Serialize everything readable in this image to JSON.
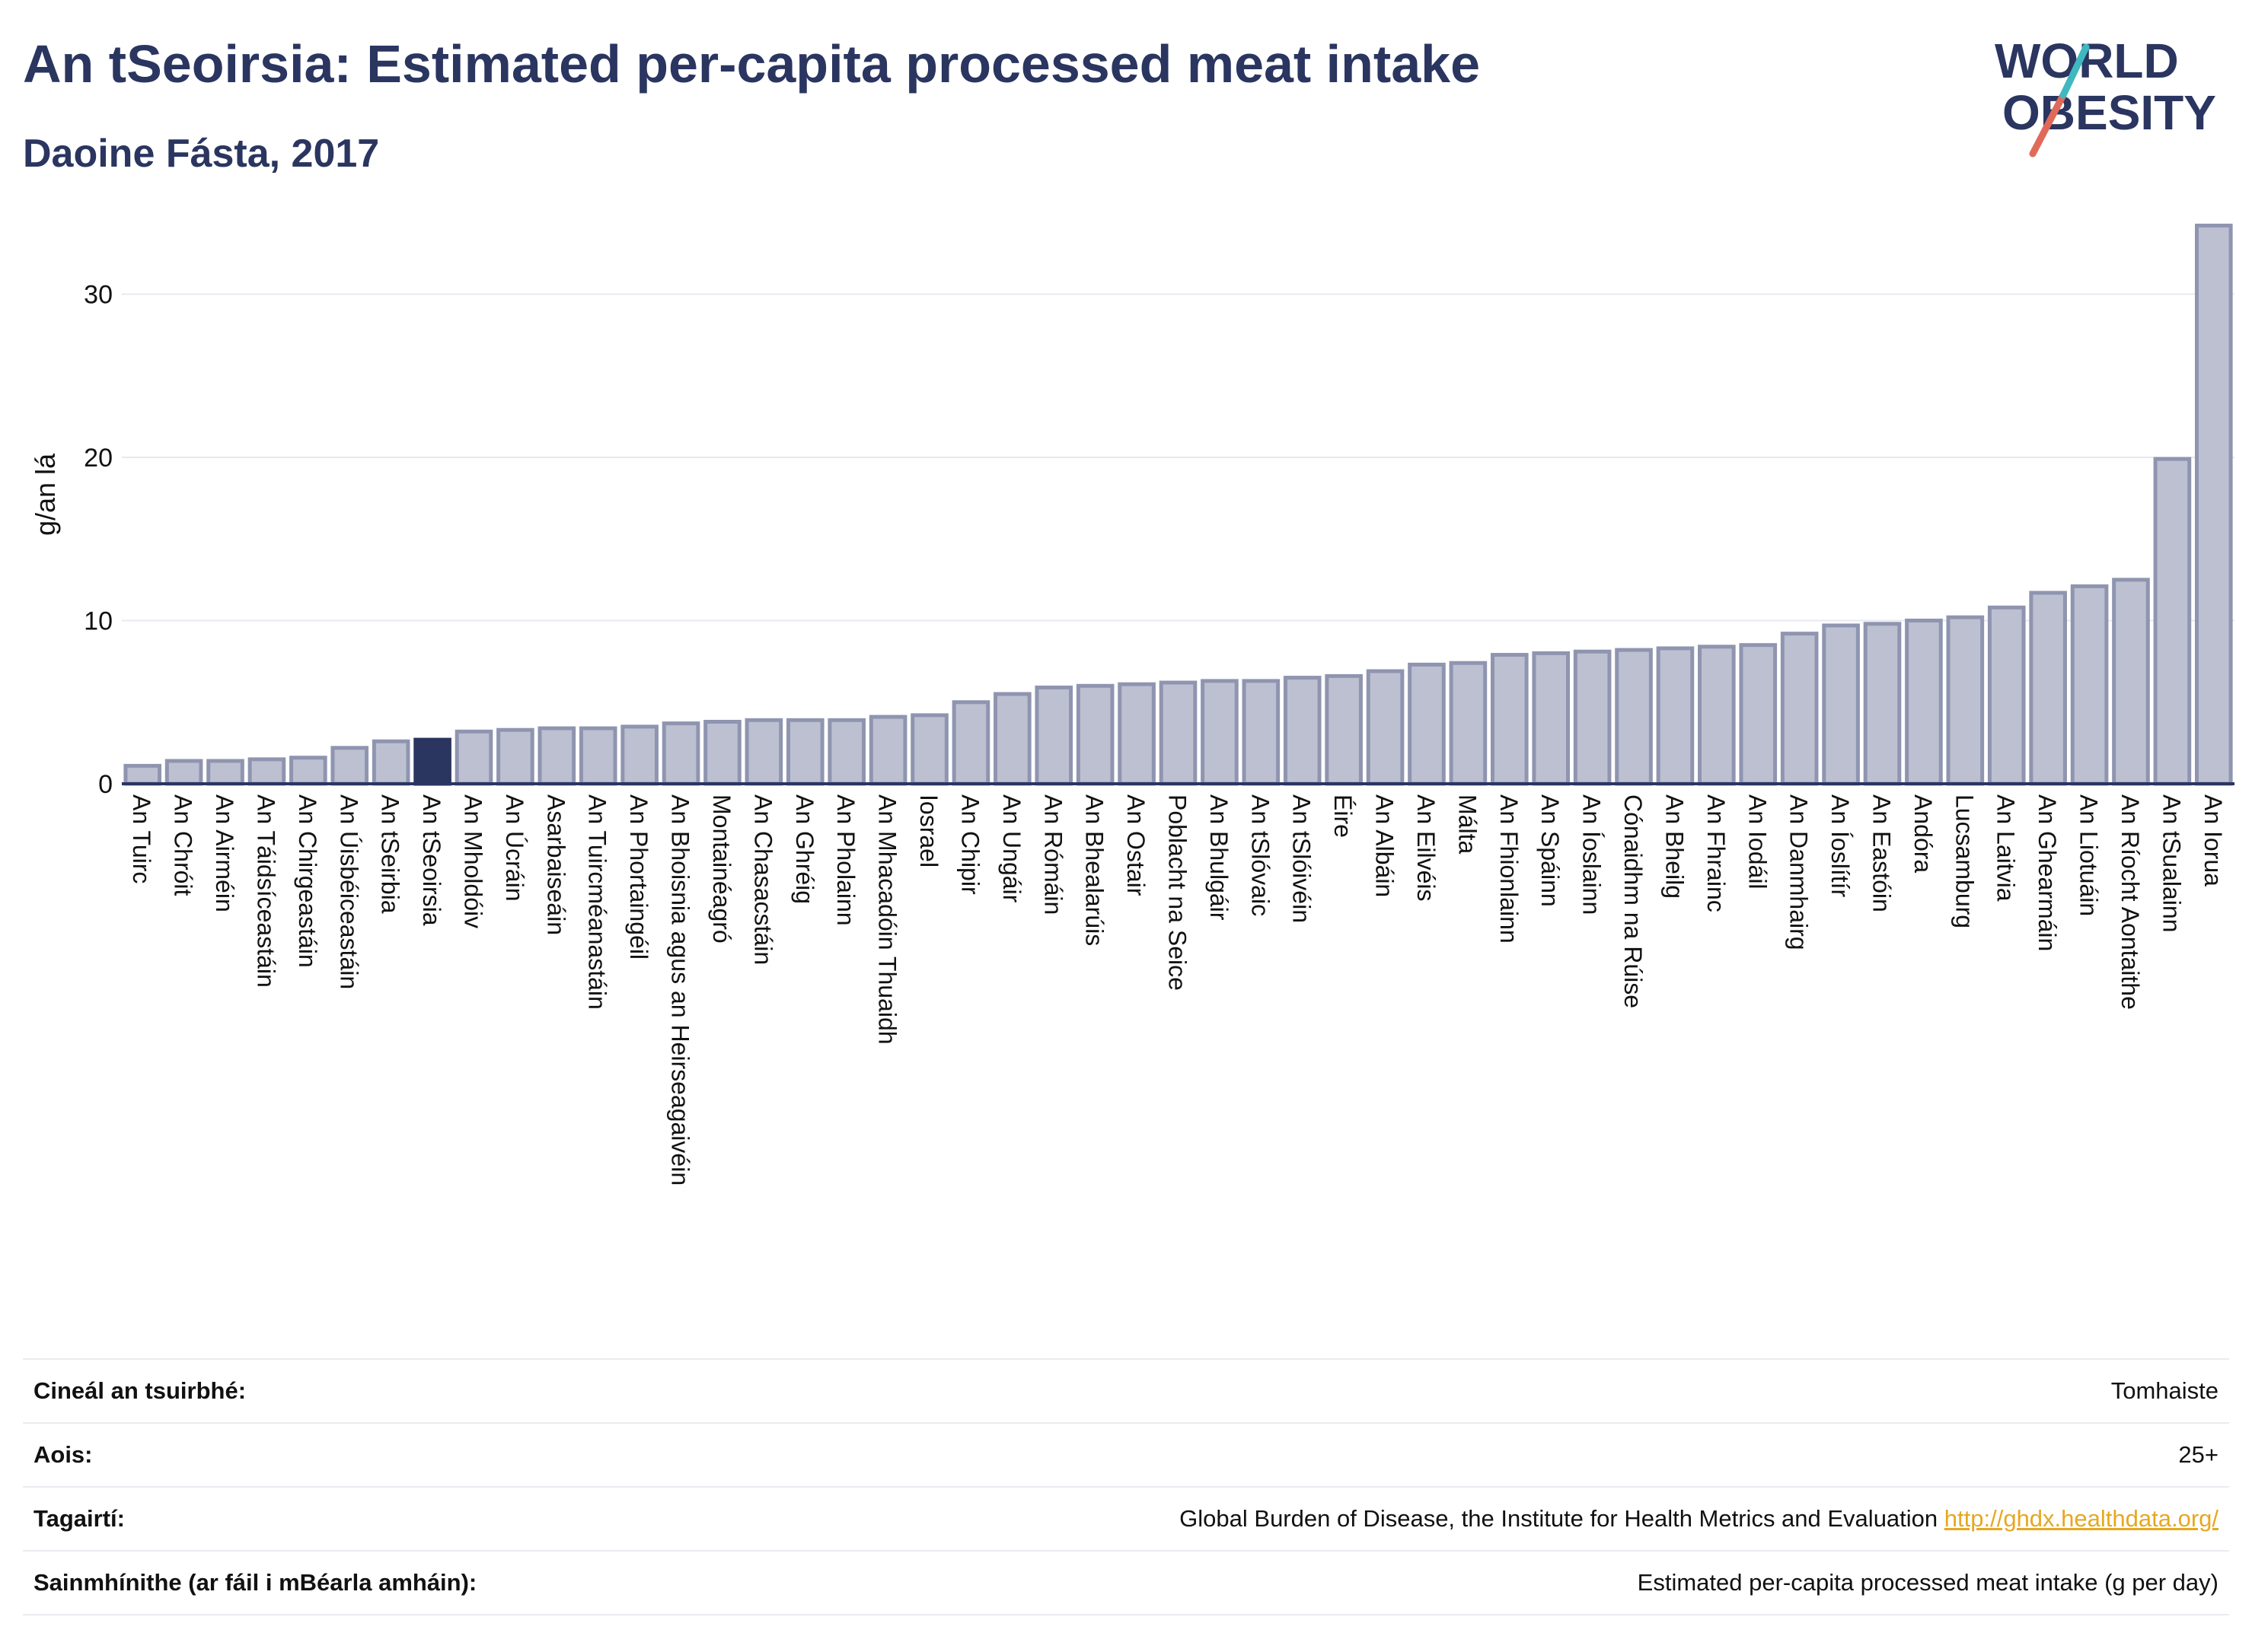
{
  "header": {
    "title": "An tSeoirsia: Estimated per-capita processed meat intake",
    "subtitle": "Daoine Fásta, 2017"
  },
  "logo": {
    "line1": "WORLD",
    "line2": "OBESITY"
  },
  "colors": {
    "bar_fill": "#bcc0d0",
    "bar_stroke": "#8f95b0",
    "highlight_fill": "#2a3560",
    "axis": "#2a3560",
    "grid": "#e6e9ef",
    "logo_text": "#2a3560",
    "logo_slash_red": "#e06a5a",
    "logo_slash_teal": "#3fb8c0",
    "link": "#e6a820"
  },
  "chart_data": {
    "type": "bar",
    "ylabel": "g/an lá",
    "xlabel": "",
    "ylim": [
      0,
      34.5
    ],
    "yticks": [
      0,
      10,
      20,
      30
    ],
    "grid": true,
    "highlight": "An tSeoirsia",
    "categories": [
      "An Tuirc",
      "An Chróit",
      "An Airméin",
      "An Táidsíceastáin",
      "An Chirgeastáin",
      "An Úisbéiceastáin",
      "An tSeirbia",
      "An tSeoirsia",
      "An Mholdóiv",
      "An Úcráin",
      "Asarbaiseáin",
      "An Tuircméanastáin",
      "An Phortaingéil",
      "An Bhoisnia agus an Heirseagaivéin",
      "Montainéagró",
      "An Chasacstáin",
      "An Ghréig",
      "An Pholainn",
      "An Mhacadóin Thuaidh",
      "Iosrael",
      "An Chipir",
      "An Ungáir",
      "An Rómáin",
      "An Bhealarúis",
      "An Ostair",
      "Poblacht na Seice",
      "An Bhulgáir",
      "An tSlóvaic",
      "An tSlóivéin",
      "Éire",
      "An Albáin",
      "An Eilvéis",
      "Málta",
      "An Fhionlainn",
      "An Spáinn",
      "An Íoslainn",
      "Cónaidhm na Rúise",
      "An Bheilg",
      "An Fhrainc",
      "An Iodáil",
      "An Danmhairg",
      "An Íoslítír",
      "An Eastóin",
      "Andóra",
      "Lucsamburg",
      "An Laitvia",
      "An Ghearmáin",
      "An Liotuáin",
      "An Ríocht Aontaithe",
      "An tSualainn",
      "An Iorua"
    ],
    "values": [
      1.1,
      1.4,
      1.4,
      1.5,
      1.6,
      2.2,
      2.6,
      2.7,
      3.2,
      3.3,
      3.4,
      3.4,
      3.5,
      3.7,
      3.8,
      3.9,
      3.9,
      3.9,
      4.1,
      4.2,
      5.0,
      5.5,
      5.9,
      6.0,
      6.1,
      6.2,
      6.3,
      6.3,
      6.5,
      6.6,
      6.9,
      7.3,
      7.4,
      7.9,
      8.0,
      8.1,
      8.2,
      8.3,
      8.4,
      8.5,
      9.2,
      9.7,
      9.8,
      10.0,
      10.2,
      10.8,
      11.7,
      12.1,
      12.5,
      19.9,
      34.2
    ]
  },
  "info": [
    {
      "label": "Cineál an tsuirbhé:",
      "value": "Tomhaiste"
    },
    {
      "label": "Aois:",
      "value": "25+"
    },
    {
      "label": "Tagairtí:",
      "value": "Global Burden of Disease, the Institute for Health Metrics and Evaluation",
      "link": "http://ghdx.healthdata.org/"
    },
    {
      "label": "Sainmhínithe (ar fáil i mBéarla amháin):",
      "value": "Estimated per-capita processed meat intake (g per day)"
    }
  ]
}
